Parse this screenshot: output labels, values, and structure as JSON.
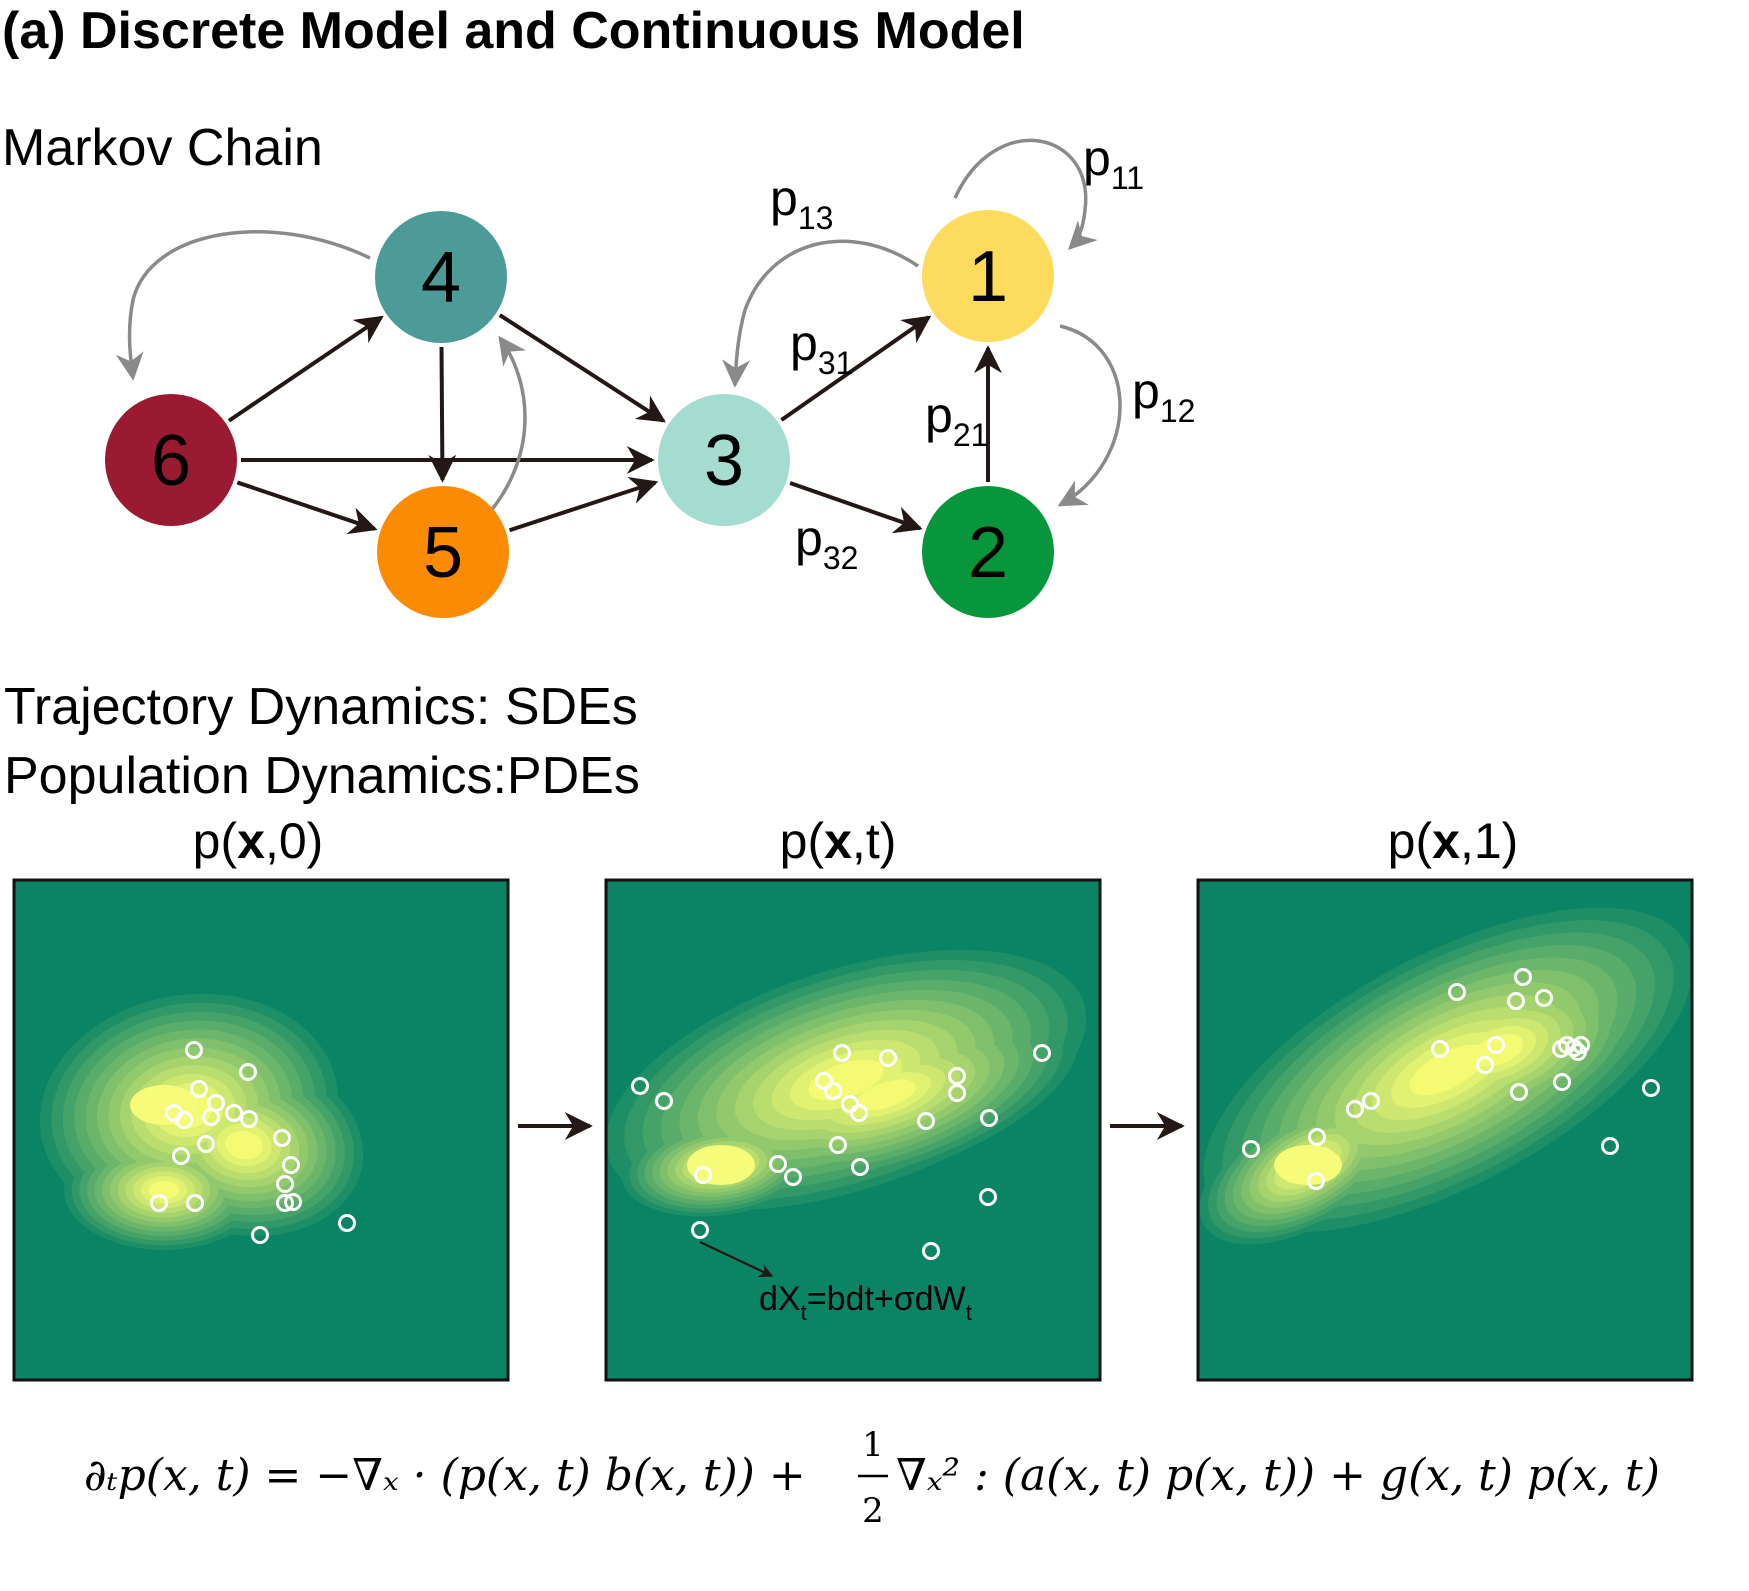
{
  "title": "(a) Discrete Model and Continuous Model",
  "markov": {
    "heading": "Markov Chain",
    "nodes": [
      {
        "id": "1",
        "label": "1",
        "color": "#FDDB5D"
      },
      {
        "id": "2",
        "label": "2",
        "color": "#07963B"
      },
      {
        "id": "3",
        "label": "3",
        "color": "#A5DCD0"
      },
      {
        "id": "4",
        "label": "4",
        "color": "#4C9B98"
      },
      {
        "id": "5",
        "label": "5",
        "color": "#FB8B03"
      },
      {
        "id": "6",
        "label": "6",
        "color": "#991A31"
      }
    ],
    "edges": [
      {
        "from": "6",
        "to": "4",
        "style": "dark"
      },
      {
        "from": "6",
        "to": "3",
        "style": "dark"
      },
      {
        "from": "6",
        "to": "5",
        "style": "dark"
      },
      {
        "from": "4",
        "to": "5",
        "style": "dark"
      },
      {
        "from": "4",
        "to": "3",
        "style": "dark"
      },
      {
        "from": "5",
        "to": "3",
        "style": "dark"
      },
      {
        "from": "3",
        "to": "1",
        "style": "dark",
        "label": "p",
        "sub": "31"
      },
      {
        "from": "3",
        "to": "2",
        "style": "dark",
        "label": "p",
        "sub": "32"
      },
      {
        "from": "2",
        "to": "1",
        "style": "dark",
        "label": "p",
        "sub": "21"
      },
      {
        "from": "4",
        "to": "6",
        "style": "gray"
      },
      {
        "from": "5",
        "to": "4",
        "style": "gray"
      },
      {
        "from": "1",
        "to": "3",
        "style": "gray",
        "label": "p",
        "sub": "13"
      },
      {
        "from": "1",
        "to": "2",
        "style": "gray",
        "label": "p",
        "sub": "12"
      },
      {
        "from": "1",
        "to": "1",
        "style": "gray",
        "label": "p",
        "sub": "11"
      }
    ]
  },
  "continuous": {
    "heading1": "Trajectory Dynamics: SDEs",
    "heading2": "Population Dynamics:PDEs",
    "panels": [
      {
        "title_pre": "p(",
        "title_bold": "x",
        "title_post": ",0)"
      },
      {
        "title_pre": "p(",
        "title_bold": "x",
        "title_post": ",t)"
      },
      {
        "title_pre": "p(",
        "title_bold": "x",
        "title_post": ",1)"
      }
    ],
    "sde": {
      "pre": "dX",
      "sub1": "t",
      "mid": "=bdt+σdW",
      "sub2": "t"
    },
    "colors": {
      "background": "#0B8466",
      "peak": "#F4FB72"
    }
  },
  "equation": {
    "lhs": "∂ₜp(x, t) = −∇ₓ · (p(x, t) b(x, t)) + ",
    "frac_num": "1",
    "frac_den": "2",
    "rhs": "∇ₓ² : (a(x, t) p(x, t)) + g(x, t) p(x, t)"
  }
}
